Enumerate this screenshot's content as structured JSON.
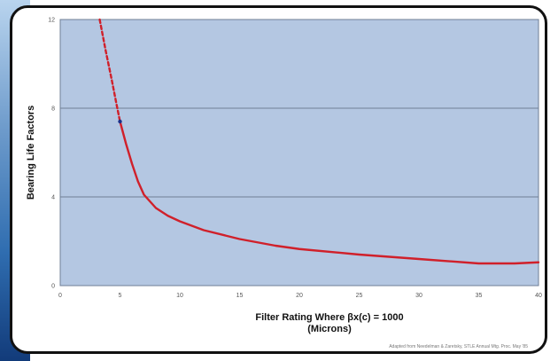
{
  "colors": {
    "plot_background": "#b4c7e2",
    "grid": "#6f7f96",
    "series": "#d0202a",
    "marker": "#1a2f88",
    "frame": "#111111"
  },
  "chart_data": {
    "type": "line",
    "title": "",
    "xlabel": "Filter Rating Where βx(c) = 1000",
    "xlabel_line2": "(Microns)",
    "ylabel": "Bearing Life Factors",
    "source": "Adapted from Needelman & Zaretsky, STLE Annual Mtg. Proc. May '85",
    "xlim": [
      0,
      40
    ],
    "ylim": [
      0,
      12
    ],
    "x_ticks": [
      0,
      5,
      10,
      15,
      20,
      25,
      30,
      35,
      40
    ],
    "x_tick_labels": [
      "0",
      "5",
      "10",
      "15",
      "20",
      "25",
      "30",
      "35",
      "40"
    ],
    "y_ticks": [
      0,
      4,
      8,
      12
    ],
    "y_tick_labels": [
      "0",
      "4",
      "8",
      "12"
    ],
    "grid": "horizontal",
    "series": [
      {
        "style": "dashed",
        "x": [
          3.3,
          3.8,
          4.3,
          4.7,
          5.0
        ],
        "y": [
          12.0,
          10.6,
          9.3,
          8.2,
          7.4
        ]
      },
      {
        "style": "solid",
        "x": [
          5.0,
          5.5,
          6.0,
          6.5,
          7.0,
          7.5,
          8.0,
          9.0,
          10.0,
          12.0,
          15.0,
          18.0,
          20.0,
          25.0,
          30.0,
          35.0,
          38.0,
          40.0
        ],
        "y": [
          7.4,
          6.4,
          5.5,
          4.7,
          4.1,
          3.8,
          3.5,
          3.15,
          2.9,
          2.5,
          2.1,
          1.8,
          1.65,
          1.4,
          1.2,
          1.0,
          1.0,
          1.05
        ]
      }
    ],
    "marker": {
      "x": 5.0,
      "y": 7.4
    }
  }
}
